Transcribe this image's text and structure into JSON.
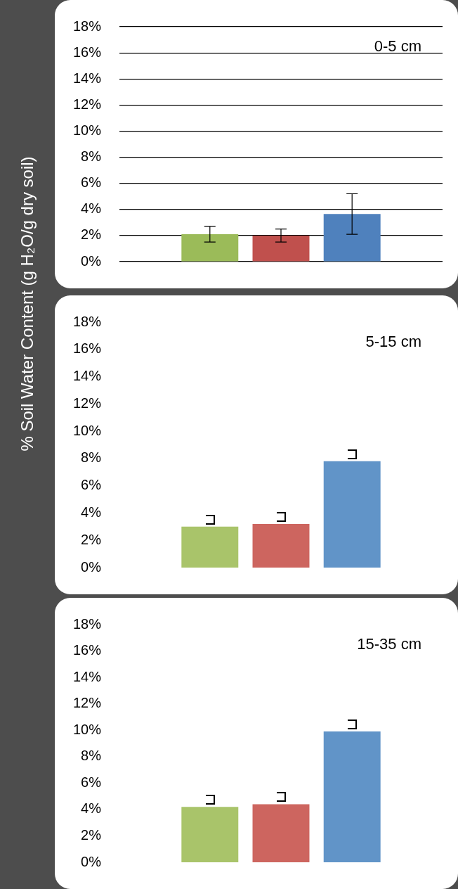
{
  "chart_data": [
    {
      "type": "bar",
      "title": "0-5 cm",
      "ylabel": "% Soil Water Content (g H₂O/g dry soil)",
      "categories": [
        null
      ],
      "series": [
        {
          "color": "#9bbb59",
          "values": [
            2.1
          ],
          "errors": [
            0.6
          ]
        },
        {
          "color": "#c0504d",
          "values": [
            2.0
          ],
          "errors": [
            0.5
          ]
        },
        {
          "color": "#4f81bd",
          "values": [
            3.65
          ],
          "errors": [
            1.55
          ]
        }
      ],
      "ylim": [
        0,
        18
      ],
      "yticks": [
        {
          "value": 0,
          "label": "0%"
        },
        {
          "value": 2,
          "label": "2%"
        },
        {
          "value": 4,
          "label": "4%"
        },
        {
          "value": 6,
          "label": "6%"
        },
        {
          "value": 8,
          "label": "8%"
        },
        {
          "value": 10,
          "label": "10%"
        },
        {
          "value": 12,
          "label": "12%"
        },
        {
          "value": 14,
          "label": "14%"
        },
        {
          "value": 16,
          "label": "16%"
        },
        {
          "value": 18,
          "label": "18%"
        }
      ],
      "grid": true,
      "tick_labels": "y",
      "legend": false
    },
    {
      "type": "bar",
      "title": "5-15 cm",
      "categories": [
        null
      ],
      "series": [
        {
          "color": "#a9c46a",
          "values": [
            3.0
          ]
        },
        {
          "color": "#cd655f",
          "values": [
            3.2
          ]
        },
        {
          "color": "#6194c8",
          "values": [
            7.8
          ]
        }
      ],
      "ylim": [
        0,
        18
      ],
      "yticks": [
        {
          "value": 0,
          "label": "0%"
        },
        {
          "value": 2,
          "label": "2%"
        },
        {
          "value": 4,
          "label": "4%"
        },
        {
          "value": 6,
          "label": "6%"
        },
        {
          "value": 8,
          "label": "8%"
        },
        {
          "value": 10,
          "label": "10%"
        },
        {
          "value": 12,
          "label": "12%"
        },
        {
          "value": 14,
          "label": "14%"
        },
        {
          "value": 16,
          "label": "16%"
        },
        {
          "value": 18,
          "label": "18%"
        }
      ],
      "grid": false,
      "tick_labels": "y",
      "legend": false
    },
    {
      "type": "bar",
      "title": "15-35 cm",
      "categories": [
        null
      ],
      "series": [
        {
          "color": "#a9c46a",
          "values": [
            4.2
          ]
        },
        {
          "color": "#cd655f",
          "values": [
            4.4
          ]
        },
        {
          "color": "#6194c8",
          "values": [
            9.9
          ]
        }
      ],
      "ylim": [
        0,
        18
      ],
      "yticks": [
        {
          "value": 0,
          "label": "0%"
        },
        {
          "value": 2,
          "label": "2%"
        },
        {
          "value": 4,
          "label": "4%"
        },
        {
          "value": 6,
          "label": "6%"
        },
        {
          "value": 8,
          "label": "8%"
        },
        {
          "value": 10,
          "label": "10%"
        },
        {
          "value": 12,
          "label": "12%"
        },
        {
          "value": 14,
          "label": "14%"
        },
        {
          "value": 16,
          "label": "16%"
        },
        {
          "value": 18,
          "label": "18%"
        }
      ],
      "grid": false,
      "tick_labels": "y",
      "legend": false
    }
  ]
}
